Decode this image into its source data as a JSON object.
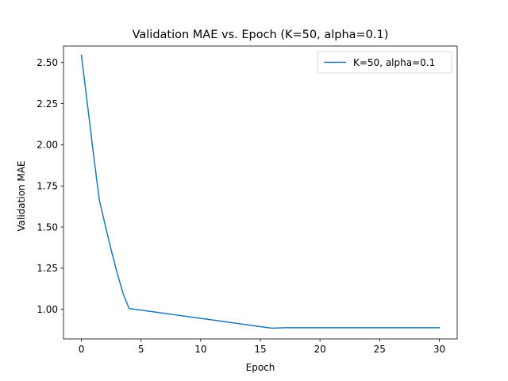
{
  "chart_data": {
    "type": "line",
    "title": "Validation MAE vs. Epoch (K=50, alpha=0.1)",
    "xlabel": "Epoch",
    "ylabel": "Validation MAE",
    "xlim": [
      -1.5,
      31.5
    ],
    "ylim": [
      0.82,
      2.6
    ],
    "xticks": [
      0,
      5,
      10,
      15,
      20,
      25,
      30
    ],
    "xtick_labels": [
      "0",
      "5",
      "10",
      "15",
      "20",
      "25",
      "30"
    ],
    "yticks": [
      1.0,
      1.25,
      1.5,
      1.75,
      2.0,
      2.25,
      2.5
    ],
    "ytick_labels": [
      "1.00",
      "1.25",
      "1.50",
      "1.75",
      "2.00",
      "2.25",
      "2.50"
    ],
    "grid": false,
    "legend_position": "top-right",
    "series": [
      {
        "name": "K=50, alpha=0.1",
        "color": "#1f77b4",
        "x": [
          0,
          0.5,
          1,
          1.5,
          2,
          2.5,
          3,
          3.5,
          4,
          5,
          6,
          7,
          8,
          9,
          10,
          11,
          12,
          13,
          14,
          15,
          16,
          17,
          18,
          19,
          20,
          21,
          22,
          23,
          24,
          25,
          26,
          27,
          28,
          29,
          30
        ],
        "y": [
          2.545,
          2.25,
          1.95,
          1.665,
          1.51,
          1.36,
          1.22,
          1.095,
          1.005,
          0.995,
          0.985,
          0.975,
          0.965,
          0.955,
          0.945,
          0.935,
          0.925,
          0.915,
          0.905,
          0.895,
          0.885,
          0.888,
          0.888,
          0.888,
          0.888,
          0.888,
          0.888,
          0.888,
          0.888,
          0.888,
          0.888,
          0.888,
          0.888,
          0.888,
          0.888
        ]
      }
    ]
  }
}
